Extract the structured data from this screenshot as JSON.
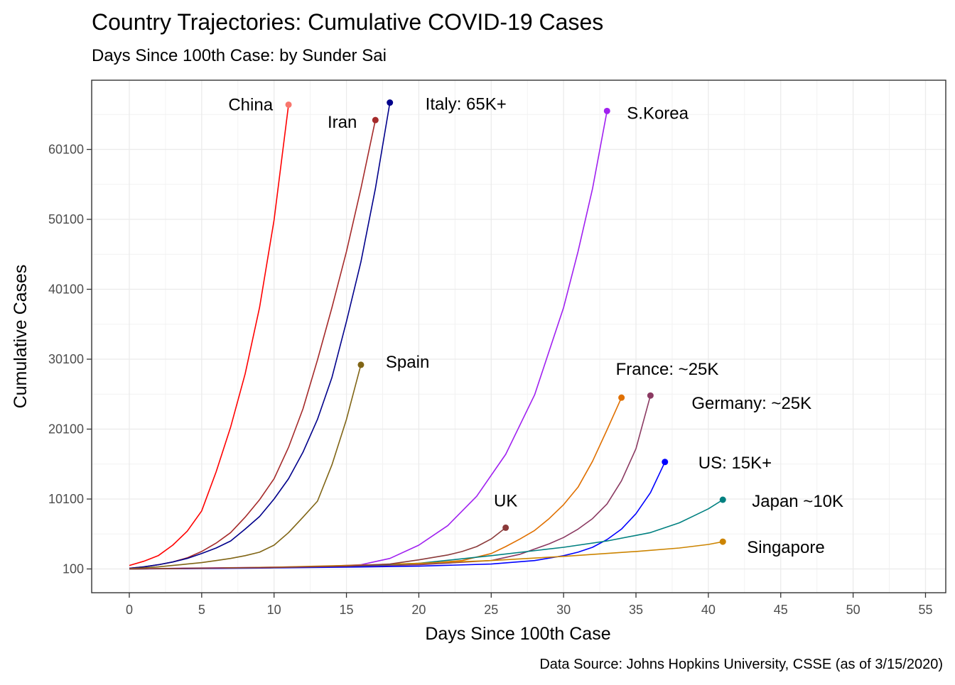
{
  "chart_data": {
    "type": "line",
    "title": "Country Trajectories: Cumulative COVID-19 Cases",
    "subtitle": "Days Since 100th Case: by Sunder Sai",
    "caption": "Data Source: Johns Hopkins University, CSSE (as of 3/15/2020)",
    "xlabel": "Days Since 100th Case",
    "ylabel": "Cumulative Cases",
    "xlim": [
      -2.6,
      56.4
    ],
    "ylim": [
      -3300,
      70000
    ],
    "x_ticks": [
      0,
      5,
      10,
      15,
      20,
      25,
      30,
      35,
      40,
      45,
      50,
      55
    ],
    "y_ticks": [
      100,
      10100,
      20100,
      30100,
      40100,
      50100,
      60100
    ],
    "grid": true,
    "legend": "none",
    "series": [
      {
        "name": "China",
        "label": "China",
        "color": "#ff0000",
        "point_color": "#f8766d",
        "x": [
          0,
          1,
          2,
          3,
          4,
          5,
          6,
          7,
          8,
          9,
          10,
          11
        ],
        "y": [
          600,
          1200,
          2000,
          3500,
          5500,
          8400,
          14000,
          20400,
          28000,
          37500,
          50000,
          66500
        ]
      },
      {
        "name": "Iran",
        "label": "Iran",
        "color": "#a52a2a",
        "point_color": "#a52a2a",
        "x": [
          0,
          1,
          2,
          3,
          4,
          5,
          6,
          7,
          8,
          9,
          10,
          11,
          12,
          13,
          14,
          15,
          16,
          17
        ],
        "y": [
          200,
          400,
          700,
          1100,
          1700,
          2600,
          3800,
          5300,
          7500,
          10000,
          13000,
          17500,
          23000,
          30000,
          37500,
          45500,
          54500,
          64300
        ]
      },
      {
        "name": "Italy",
        "label": "Italy: 65K+",
        "color": "#00008b",
        "point_color": "#00008b",
        "x": [
          0,
          1,
          2,
          3,
          4,
          5,
          6,
          7,
          8,
          9,
          10,
          11,
          12,
          13,
          14,
          15,
          16,
          17,
          18
        ],
        "y": [
          200,
          400,
          700,
          1100,
          1600,
          2300,
          3100,
          4100,
          5800,
          7600,
          10100,
          13000,
          16800,
          21500,
          27500,
          35500,
          44000,
          54500,
          66800
        ]
      },
      {
        "name": "Spain",
        "label": "Spain",
        "color": "#806515",
        "point_color": "#806515",
        "x": [
          0,
          1,
          2,
          3,
          4,
          5,
          6,
          7,
          8,
          9,
          10,
          11,
          12,
          13,
          14,
          15,
          16
        ],
        "y": [
          150,
          250,
          400,
          600,
          800,
          1000,
          1300,
          1600,
          2000,
          2500,
          3500,
          5300,
          7500,
          9800,
          15000,
          21500,
          29300
        ]
      },
      {
        "name": "S.Korea",
        "label": "S.Korea",
        "color": "#a020f0",
        "point_color": "#a020f0",
        "x": [
          0,
          4,
          8,
          12,
          14,
          16,
          18,
          20,
          22,
          24,
          26,
          28,
          30,
          31,
          32,
          33
        ],
        "y": [
          100,
          220,
          300,
          420,
          520,
          700,
          1600,
          3500,
          6300,
          10500,
          16500,
          25000,
          37500,
          45500,
          54500,
          65600
        ]
      },
      {
        "name": "France",
        "label": "France: ~25K",
        "color": "#e07000",
        "point_color": "#e07000",
        "x": [
          0,
          5,
          10,
          15,
          20,
          23,
          25,
          26,
          27,
          28,
          29,
          30,
          31,
          32,
          33,
          34
        ],
        "y": [
          100,
          200,
          300,
          500,
          800,
          1300,
          2300,
          3300,
          4400,
          5600,
          7300,
          9300,
          11800,
          15500,
          20000,
          24600
        ]
      },
      {
        "name": "Germany",
        "label": "Germany: ~25K",
        "color": "#8b3a62",
        "point_color": "#8b3a62",
        "x": [
          0,
          5,
          10,
          15,
          20,
          25,
          27,
          29,
          30,
          31,
          32,
          33,
          34,
          35,
          36
        ],
        "y": [
          100,
          200,
          300,
          450,
          700,
          1300,
          2200,
          3700,
          4600,
          5800,
          7300,
          9400,
          12700,
          17300,
          24900
        ]
      },
      {
        "name": "US",
        "label": "US: 15K+",
        "color": "#0000ff",
        "point_color": "#0000ff",
        "x": [
          0,
          5,
          10,
          15,
          20,
          25,
          28,
          30,
          31,
          32,
          33,
          34,
          35,
          36,
          37
        ],
        "y": [
          100,
          150,
          250,
          350,
          500,
          800,
          1300,
          2000,
          2500,
          3200,
          4300,
          5800,
          8000,
          11000,
          15400
        ]
      },
      {
        "name": "Japan",
        "label": "Japan ~10K",
        "color": "#008080",
        "point_color": "#008080",
        "x": [
          0,
          5,
          10,
          15,
          20,
          25,
          30,
          33,
          36,
          38,
          39,
          40,
          41
        ],
        "y": [
          100,
          200,
          300,
          500,
          900,
          2000,
          3200,
          4100,
          5300,
          6700,
          7700,
          8700,
          10000
        ]
      },
      {
        "name": "Singapore",
        "label": "Singapore",
        "color": "#cc8400",
        "point_color": "#cc8400",
        "x": [
          0,
          5,
          10,
          15,
          20,
          25,
          30,
          35,
          38,
          40,
          41
        ],
        "y": [
          100,
          200,
          350,
          600,
          900,
          1300,
          1900,
          2600,
          3100,
          3600,
          4000
        ]
      },
      {
        "name": "UK",
        "label": "UK",
        "color": "#8b3a3a",
        "point_color": "#8b3a3a",
        "x": [
          0,
          5,
          10,
          15,
          18,
          20,
          22,
          23,
          24,
          25,
          26
        ],
        "y": [
          100,
          200,
          300,
          500,
          800,
          1400,
          2100,
          2600,
          3300,
          4400,
          6000
        ]
      }
    ]
  }
}
